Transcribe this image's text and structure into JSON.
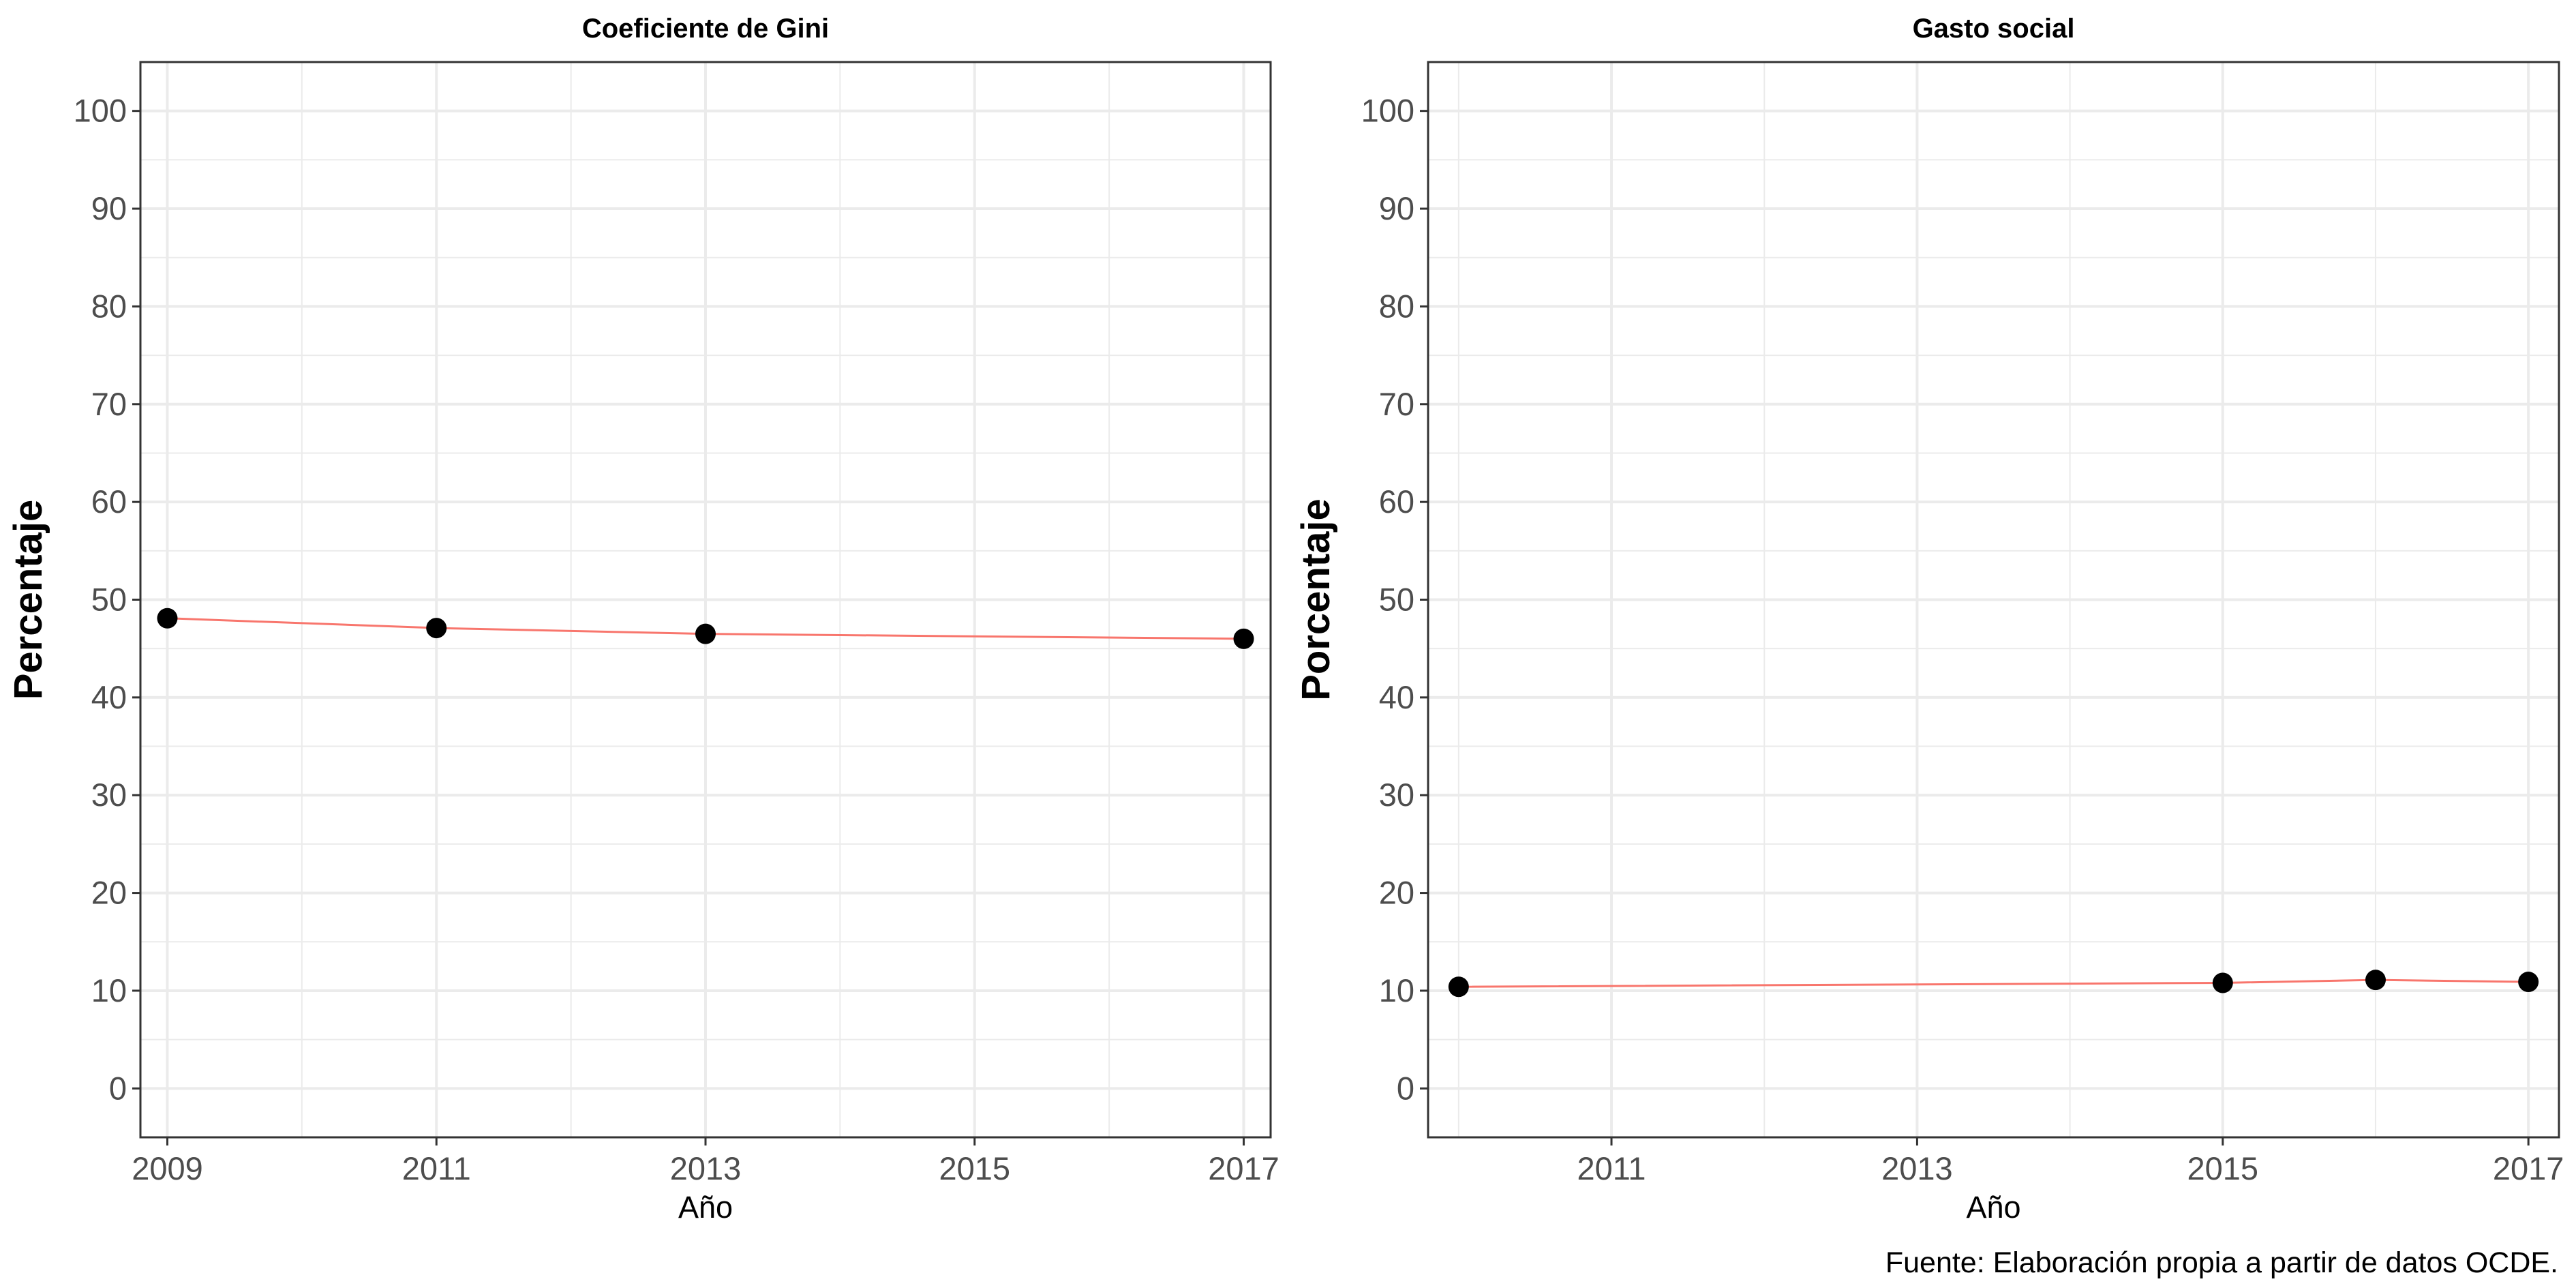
{
  "chart_data": [
    {
      "type": "line",
      "title": "Coeficiente de Gini",
      "xlabel": "Año",
      "ylabel": "Percentaje",
      "xlim": [
        2008.8,
        2017.2
      ],
      "ylim": [
        -5,
        105
      ],
      "xticks": [
        2009,
        2011,
        2013,
        2015,
        2017
      ],
      "yticks": [
        0,
        10,
        20,
        30,
        40,
        50,
        60,
        70,
        80,
        90,
        100
      ],
      "grid": true,
      "series": [
        {
          "x": [
            2009,
            2011,
            2013,
            2017
          ],
          "y": [
            48.1,
            47.1,
            46.5,
            46.0
          ]
        }
      ]
    },
    {
      "type": "line",
      "title": "Gasto social",
      "xlabel": "Año",
      "ylabel": "Porcentaje",
      "xlim": [
        2009.8,
        2017.2
      ],
      "ylim": [
        -5,
        105
      ],
      "xticks": [
        2011,
        2013,
        2015,
        2017
      ],
      "yticks": [
        0,
        10,
        20,
        30,
        40,
        50,
        60,
        70,
        80,
        90,
        100
      ],
      "grid": true,
      "series": [
        {
          "x": [
            2010,
            2015,
            2016,
            2017
          ],
          "y": [
            10.4,
            10.8,
            11.1,
            10.9
          ]
        }
      ]
    }
  ],
  "caption": "Fuente: Elaboración propia a partir de datos OCDE.",
  "colors": {
    "line": "#F8766D",
    "point": "#000000",
    "grid": "#EBEBEB",
    "axis_text": "#4D4D4D",
    "border": "#333333"
  }
}
